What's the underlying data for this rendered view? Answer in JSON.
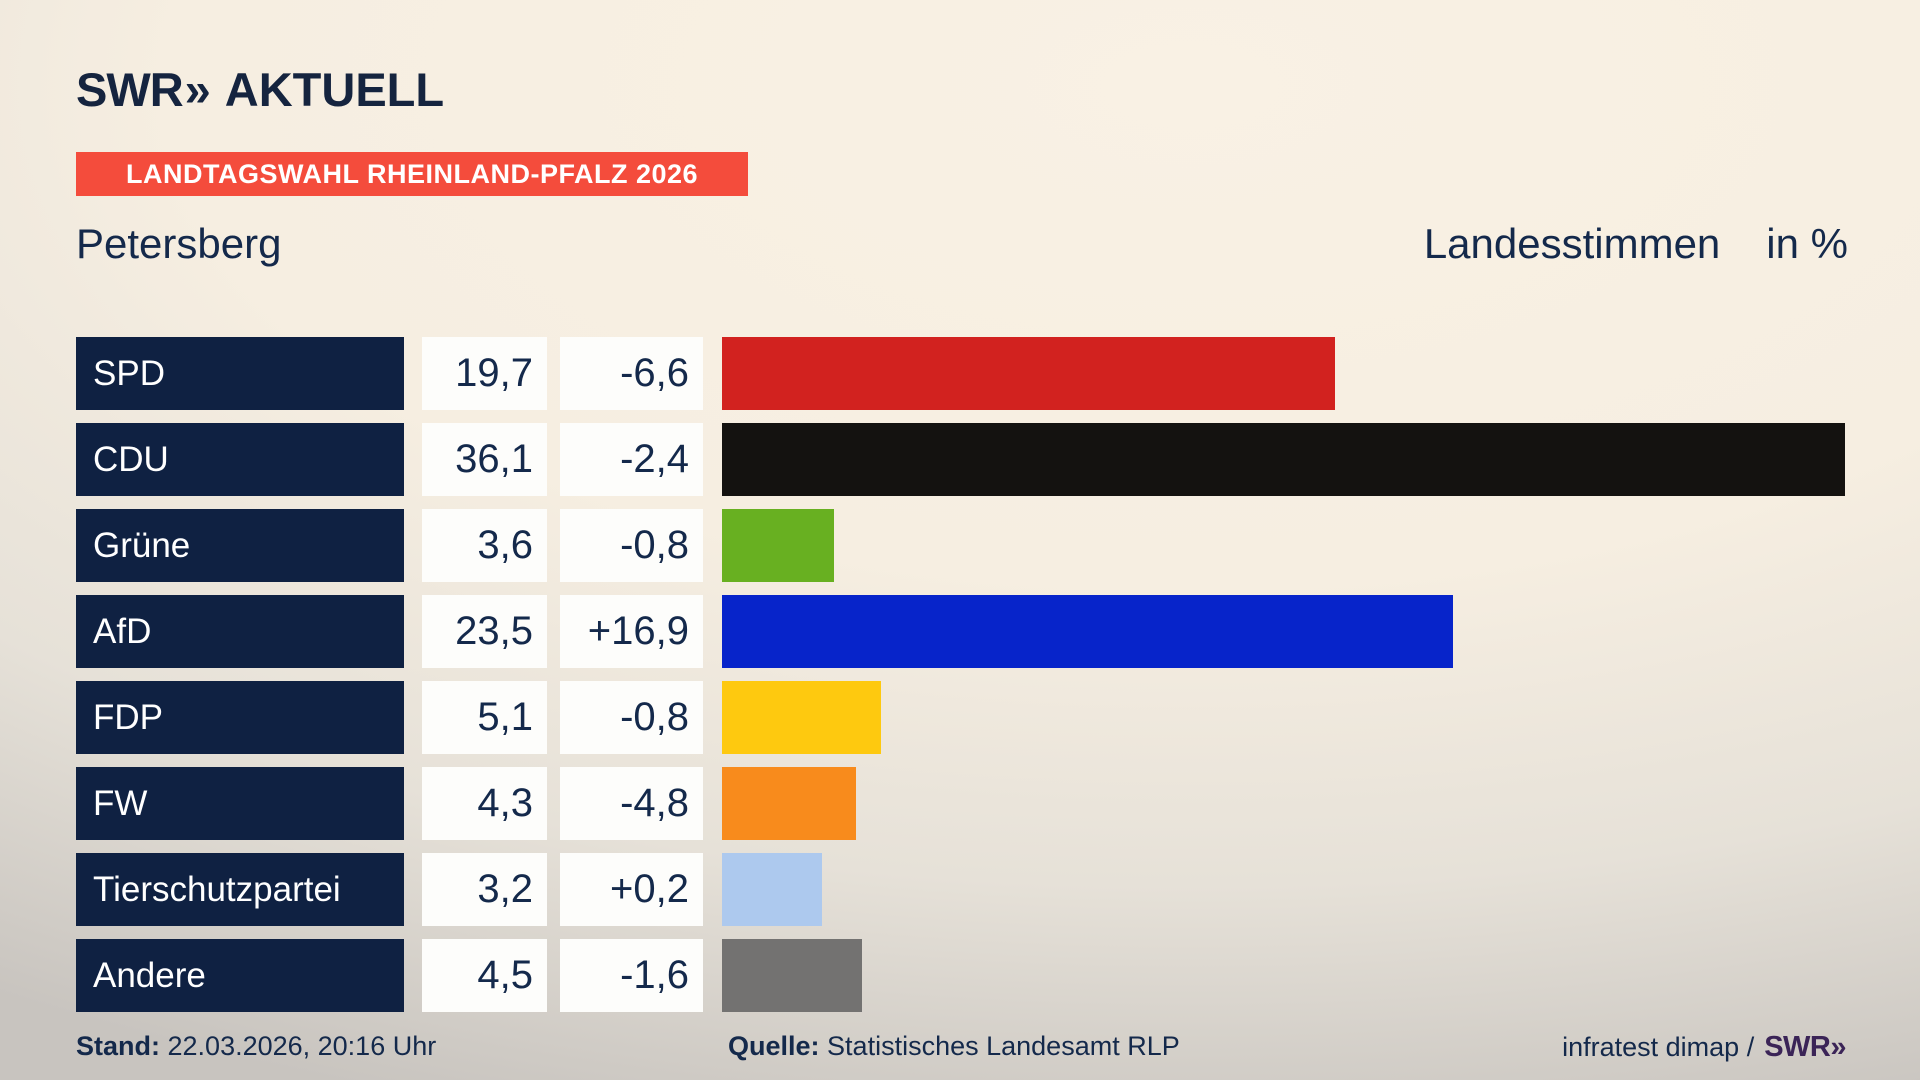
{
  "header": {
    "logo_swr": "SWR",
    "logo_chevrons": "»",
    "logo_suffix": "AKTUELL",
    "banner": "LANDTAGSWAHL RHEINLAND-PFALZ 2026",
    "region": "Petersberg",
    "measure": "Landesstimmen",
    "unit": "in %"
  },
  "chart_data": {
    "type": "bar",
    "orientation": "horizontal",
    "title": "Landesstimmen in %",
    "subtitle": "Petersberg",
    "xlabel": "",
    "ylabel": "",
    "xlim": [
      0,
      36.1
    ],
    "grid": false,
    "legend": false,
    "categories": [
      "SPD",
      "CDU",
      "Grüne",
      "AfD",
      "FDP",
      "FW",
      "Tierschutzpartei",
      "Andere"
    ],
    "values": [
      19.7,
      36.1,
      3.6,
      23.5,
      5.1,
      4.3,
      3.2,
      4.5
    ],
    "value_labels": [
      "19,7",
      "36,1",
      "3,6",
      "23,5",
      "5,1",
      "4,3",
      "3,2",
      "4,5"
    ],
    "diff_values": [
      -6.6,
      -2.4,
      -0.8,
      16.9,
      -0.8,
      -4.8,
      0.2,
      -1.6
    ],
    "diff_labels": [
      "-6,6",
      "-2,4",
      "-0,8",
      "+16,9",
      "-0,8",
      "-4,8",
      "+0,2",
      "-1,6"
    ],
    "bar_colors": [
      "#d2221f",
      "#141210",
      "#68b021",
      "#0724ca",
      "#fec90f",
      "#f88b1c",
      "#adc9ee",
      "#737271"
    ]
  },
  "footer": {
    "stand_label": "Stand:",
    "stand_value": "22.03.2026, 20:16 Uhr",
    "quelle_label": "Quelle:",
    "quelle_value": "Statistisches Landesamt RLP",
    "credit_text": "infratest dimap /",
    "credit_logo": "SWR»"
  },
  "colors": {
    "background_beige": "#f6eee1",
    "background_gray": "#c8c4bf",
    "navy_text": "#14294b",
    "label_box": "#0f2142",
    "banner_red": "#f44c3c",
    "white_box": "#fdfdfb",
    "swr_mark_purple": "#3b2457"
  }
}
